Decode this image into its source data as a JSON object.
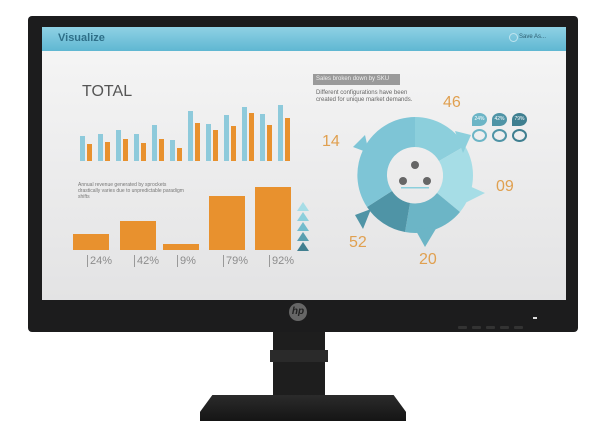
{
  "screen": {
    "header": {
      "title": "Visualize",
      "save_label": "Save As..."
    },
    "total_title": "TOTAL",
    "total_chart": {
      "type": "bar",
      "blue": [
        75,
        82,
        93,
        80,
        108,
        63,
        150,
        110,
        138,
        163,
        142,
        168
      ],
      "orange": [
        52,
        57,
        65,
        55,
        67,
        40,
        115,
        93,
        105,
        144,
        109,
        128
      ]
    },
    "caption": "Annual revenue generated by sprockets drastically varies due to unpredictable paradigm shifts",
    "revenue_chart": {
      "type": "bar",
      "categories": [
        "24%",
        "42%",
        "9%",
        "79%",
        "92%"
      ],
      "values": [
        24,
        42,
        9,
        79,
        92
      ]
    },
    "sku_label": "Sales broken down by SKU",
    "sku_desc": "Different configurations have been created for unique market demands.",
    "donut_numbers": [
      "46",
      "14",
      "09",
      "52",
      "20"
    ],
    "drops": [
      "24%",
      "42%",
      "79%"
    ],
    "colors": {
      "header": "#6bbfd8",
      "bar_orange": "#e8912e",
      "bar_blue": "#8ecadb",
      "number": "#e0a050",
      "teal_dark": "#3f7f90"
    }
  },
  "monitor": {
    "logo": "hp"
  }
}
